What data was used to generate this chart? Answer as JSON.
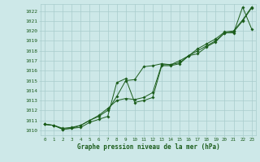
{
  "title": "Graphe pression niveau de la mer (hPa)",
  "background_color": "#cde8e8",
  "grid_color": "#a8cccc",
  "line_color": "#1a5c1a",
  "marker_color": "#1a5c1a",
  "xlim": [
    -0.5,
    23.5
  ],
  "ylim": [
    1009.5,
    1022.7
  ],
  "xticks": [
    0,
    1,
    2,
    3,
    4,
    5,
    6,
    7,
    8,
    9,
    10,
    11,
    12,
    13,
    14,
    15,
    16,
    17,
    18,
    19,
    20,
    21,
    22,
    23
  ],
  "yticks": [
    1010,
    1011,
    1012,
    1013,
    1014,
    1015,
    1016,
    1017,
    1018,
    1019,
    1020,
    1021,
    1022
  ],
  "series": [
    [
      1010.6,
      1010.5,
      1010.1,
      1010.2,
      1010.3,
      1010.8,
      1011.1,
      1011.4,
      1014.8,
      1015.2,
      1012.8,
      1013.0,
      1013.3,
      1016.5,
      1016.5,
      1016.7,
      1017.5,
      1018.0,
      1018.5,
      1019.0,
      1019.8,
      1019.8,
      1022.4,
      1020.2
    ],
    [
      1010.6,
      1010.5,
      1010.1,
      1010.2,
      1010.5,
      1011.0,
      1011.5,
      1012.2,
      1013.0,
      1013.2,
      1013.1,
      1013.3,
      1013.8,
      1016.6,
      1016.6,
      1016.8,
      1017.5,
      1017.7,
      1018.4,
      1018.9,
      1019.8,
      1019.9,
      1021.0,
      1022.3
    ],
    [
      1010.6,
      1010.5,
      1010.2,
      1010.3,
      1010.5,
      1011.0,
      1011.4,
      1012.0,
      1013.4,
      1015.0,
      1015.1,
      1016.4,
      1016.5,
      1016.7,
      1016.6,
      1017.0,
      1017.5,
      1018.2,
      1018.7,
      1019.2,
      1019.9,
      1020.0,
      1021.1,
      1022.4
    ]
  ]
}
